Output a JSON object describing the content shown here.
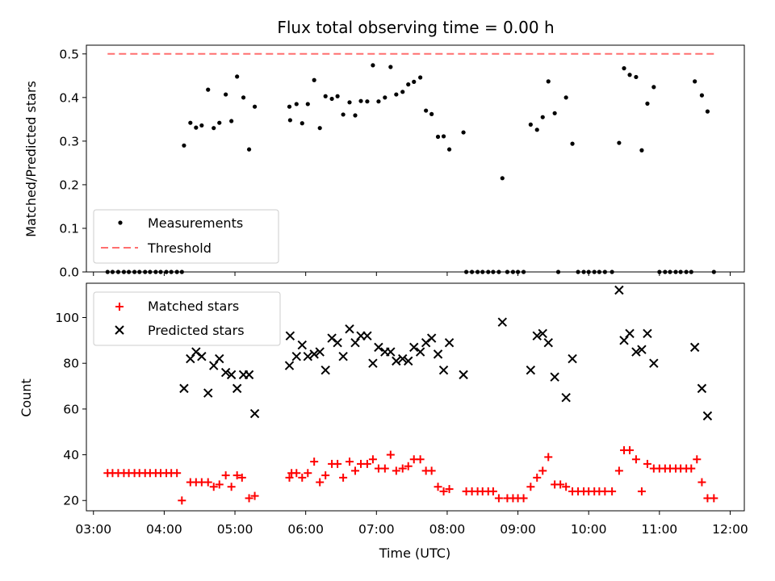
{
  "chart_data": [
    {
      "type": "scatter",
      "title": "Flux total observing time = 0.00 h",
      "ylabel": "Matched/Predicted stars",
      "xlabel": "",
      "xlim": [
        2.9,
        12.2
      ],
      "ylim": [
        0.0,
        0.52
      ],
      "yticks": [
        "0.0",
        "0.1",
        "0.2",
        "0.3",
        "0.4",
        "0.5"
      ],
      "legend_position": "lower-left",
      "series": [
        {
          "name": "Measurements",
          "marker": "dot",
          "color": "#000000",
          "points": [
            [
              3.2,
              0
            ],
            [
              3.27,
              0
            ],
            [
              3.35,
              0
            ],
            [
              3.43,
              0
            ],
            [
              3.5,
              0
            ],
            [
              3.58,
              0
            ],
            [
              3.65,
              0
            ],
            [
              3.73,
              0
            ],
            [
              3.8,
              0
            ],
            [
              3.88,
              0
            ],
            [
              3.95,
              0
            ],
            [
              4.03,
              0
            ],
            [
              4.1,
              0
            ],
            [
              4.18,
              0
            ],
            [
              4.25,
              0
            ],
            [
              4.28,
              0.29
            ],
            [
              4.37,
              0.342
            ],
            [
              4.45,
              0.331
            ],
            [
              4.53,
              0.336
            ],
            [
              4.62,
              0.418
            ],
            [
              4.7,
              0.33
            ],
            [
              4.78,
              0.342
            ],
            [
              4.87,
              0.407
            ],
            [
              4.95,
              0.346
            ],
            [
              5.03,
              0.448
            ],
            [
              5.12,
              0.4
            ],
            [
              5.2,
              0.281
            ],
            [
              5.28,
              0.379
            ],
            [
              5.77,
              0.379
            ],
            [
              5.78,
              0.348
            ],
            [
              5.87,
              0.385
            ],
            [
              5.95,
              0.341
            ],
            [
              6.03,
              0.385
            ],
            [
              6.12,
              0.44
            ],
            [
              6.2,
              0.33
            ],
            [
              6.28,
              0.403
            ],
            [
              6.37,
              0.397
            ],
            [
              6.45,
              0.403
            ],
            [
              6.53,
              0.361
            ],
            [
              6.62,
              0.389
            ],
            [
              6.7,
              0.359
            ],
            [
              6.78,
              0.392
            ],
            [
              6.87,
              0.391
            ],
            [
              6.95,
              0.474
            ],
            [
              7.03,
              0.391
            ],
            [
              7.12,
              0.4
            ],
            [
              7.2,
              0.47
            ],
            [
              7.28,
              0.407
            ],
            [
              7.37,
              0.413
            ],
            [
              7.45,
              0.43
            ],
            [
              7.53,
              0.436
            ],
            [
              7.62,
              0.446
            ],
            [
              7.7,
              0.37
            ],
            [
              7.78,
              0.362
            ],
            [
              7.87,
              0.31
            ],
            [
              7.95,
              0.311
            ],
            [
              8.03,
              0.281
            ],
            [
              8.23,
              0.32
            ],
            [
              8.27,
              0
            ],
            [
              8.35,
              0
            ],
            [
              8.43,
              0
            ],
            [
              8.5,
              0
            ],
            [
              8.58,
              0
            ],
            [
              8.65,
              0
            ],
            [
              8.73,
              0
            ],
            [
              8.78,
              0.215
            ],
            [
              8.85,
              0
            ],
            [
              8.93,
              0
            ],
            [
              9.0,
              0
            ],
            [
              9.08,
              0
            ],
            [
              9.18,
              0.338
            ],
            [
              9.27,
              0.326
            ],
            [
              9.35,
              0.355
            ],
            [
              9.43,
              0.437
            ],
            [
              9.52,
              0.364
            ],
            [
              9.68,
              0.4
            ],
            [
              9.77,
              0.294
            ],
            [
              9.57,
              0
            ],
            [
              9.85,
              0
            ],
            [
              9.93,
              0
            ],
            [
              10.0,
              0
            ],
            [
              10.08,
              0
            ],
            [
              10.15,
              0
            ],
            [
              10.23,
              0
            ],
            [
              10.33,
              0
            ],
            [
              10.43,
              0.296
            ],
            [
              10.5,
              0.467
            ],
            [
              10.58,
              0.452
            ],
            [
              10.67,
              0.447
            ],
            [
              10.75,
              0.279
            ],
            [
              10.83,
              0.386
            ],
            [
              10.92,
              0.424
            ],
            [
              11.0,
              0
            ],
            [
              11.08,
              0
            ],
            [
              11.15,
              0
            ],
            [
              11.23,
              0
            ],
            [
              11.3,
              0
            ],
            [
              11.38,
              0
            ],
            [
              11.45,
              0
            ],
            [
              11.5,
              0.437
            ],
            [
              11.6,
              0.405
            ],
            [
              11.68,
              0.368
            ],
            [
              11.77,
              0
            ]
          ]
        },
        {
          "name": "Threshold",
          "marker": "dashed-line",
          "color": "#ff6f6f",
          "points": [
            [
              3.2,
              0.5
            ],
            [
              11.77,
              0.5
            ]
          ]
        }
      ]
    },
    {
      "type": "scatter",
      "title": "",
      "ylabel": "Count",
      "xlabel": "Time (UTC)",
      "xlim": [
        2.9,
        12.2
      ],
      "ylim": [
        15.5,
        115
      ],
      "yticks": [
        "20",
        "40",
        "60",
        "80",
        "100"
      ],
      "xticks": [
        "03:00",
        "04:00",
        "05:00",
        "06:00",
        "07:00",
        "08:00",
        "09:00",
        "10:00",
        "11:00",
        "12:00"
      ],
      "legend_position": "upper-left",
      "series": [
        {
          "name": "Matched stars",
          "marker": "plus",
          "color": "#ff0000",
          "points": [
            [
              3.2,
              32
            ],
            [
              3.27,
              32
            ],
            [
              3.35,
              32
            ],
            [
              3.43,
              32
            ],
            [
              3.5,
              32
            ],
            [
              3.58,
              32
            ],
            [
              3.65,
              32
            ],
            [
              3.73,
              32
            ],
            [
              3.8,
              32
            ],
            [
              3.88,
              32
            ],
            [
              3.95,
              32
            ],
            [
              4.03,
              32
            ],
            [
              4.1,
              32
            ],
            [
              4.18,
              32
            ],
            [
              4.25,
              20
            ],
            [
              4.37,
              28
            ],
            [
              4.45,
              28
            ],
            [
              4.53,
              28
            ],
            [
              4.62,
              28
            ],
            [
              4.7,
              26
            ],
            [
              4.78,
              27
            ],
            [
              4.87,
              31
            ],
            [
              4.95,
              26
            ],
            [
              5.03,
              31
            ],
            [
              5.1,
              30
            ],
            [
              5.2,
              21
            ],
            [
              5.28,
              22
            ],
            [
              5.77,
              30
            ],
            [
              5.8,
              32
            ],
            [
              5.87,
              32
            ],
            [
              5.95,
              30
            ],
            [
              6.03,
              32
            ],
            [
              6.12,
              37
            ],
            [
              6.2,
              28
            ],
            [
              6.28,
              31
            ],
            [
              6.37,
              36
            ],
            [
              6.45,
              36
            ],
            [
              6.53,
              30
            ],
            [
              6.62,
              37
            ],
            [
              6.7,
              33
            ],
            [
              6.78,
              36
            ],
            [
              6.87,
              36
            ],
            [
              6.95,
              38
            ],
            [
              7.03,
              34
            ],
            [
              7.12,
              34
            ],
            [
              7.2,
              40
            ],
            [
              7.28,
              33
            ],
            [
              7.37,
              34
            ],
            [
              7.45,
              35
            ],
            [
              7.53,
              38
            ],
            [
              7.62,
              38
            ],
            [
              7.7,
              33
            ],
            [
              7.78,
              33
            ],
            [
              7.87,
              26
            ],
            [
              7.95,
              24
            ],
            [
              8.03,
              25
            ],
            [
              8.27,
              24
            ],
            [
              8.35,
              24
            ],
            [
              8.43,
              24
            ],
            [
              8.5,
              24
            ],
            [
              8.58,
              24
            ],
            [
              8.65,
              24
            ],
            [
              8.73,
              21
            ],
            [
              8.85,
              21
            ],
            [
              8.93,
              21
            ],
            [
              9.0,
              21
            ],
            [
              9.08,
              21
            ],
            [
              9.18,
              26
            ],
            [
              9.27,
              30
            ],
            [
              9.35,
              33
            ],
            [
              9.43,
              39
            ],
            [
              9.52,
              27
            ],
            [
              9.6,
              27
            ],
            [
              9.68,
              26
            ],
            [
              9.77,
              24
            ],
            [
              9.85,
              24
            ],
            [
              9.93,
              24
            ],
            [
              10.0,
              24
            ],
            [
              10.08,
              24
            ],
            [
              10.15,
              24
            ],
            [
              10.23,
              24
            ],
            [
              10.33,
              24
            ],
            [
              10.43,
              33
            ],
            [
              10.5,
              42
            ],
            [
              10.58,
              42
            ],
            [
              10.67,
              38
            ],
            [
              10.75,
              24
            ],
            [
              10.83,
              36
            ],
            [
              10.92,
              34
            ],
            [
              11.0,
              34
            ],
            [
              11.08,
              34
            ],
            [
              11.15,
              34
            ],
            [
              11.23,
              34
            ],
            [
              11.3,
              34
            ],
            [
              11.38,
              34
            ],
            [
              11.45,
              34
            ],
            [
              11.53,
              38
            ],
            [
              11.6,
              28
            ],
            [
              11.68,
              21
            ],
            [
              11.77,
              21
            ]
          ]
        },
        {
          "name": "Predicted stars",
          "marker": "x",
          "color": "#000000",
          "points": [
            [
              4.28,
              69
            ],
            [
              4.37,
              82
            ],
            [
              4.45,
              85
            ],
            [
              4.53,
              83
            ],
            [
              4.62,
              67
            ],
            [
              4.7,
              79
            ],
            [
              4.78,
              82
            ],
            [
              4.87,
              76
            ],
            [
              4.95,
              75
            ],
            [
              5.03,
              69
            ],
            [
              5.12,
              75
            ],
            [
              5.2,
              75
            ],
            [
              5.28,
              58
            ],
            [
              5.77,
              79
            ],
            [
              5.78,
              92
            ],
            [
              5.87,
              83
            ],
            [
              5.95,
              88
            ],
            [
              6.03,
              83
            ],
            [
              6.12,
              84
            ],
            [
              6.2,
              85
            ],
            [
              6.28,
              77
            ],
            [
              6.37,
              91
            ],
            [
              6.45,
              89
            ],
            [
              6.53,
              83
            ],
            [
              6.62,
              95
            ],
            [
              6.7,
              89
            ],
            [
              6.78,
              92
            ],
            [
              6.87,
              92
            ],
            [
              6.95,
              80
            ],
            [
              7.03,
              87
            ],
            [
              7.12,
              85
            ],
            [
              7.2,
              85
            ],
            [
              7.28,
              81
            ],
            [
              7.37,
              82
            ],
            [
              7.45,
              81
            ],
            [
              7.53,
              87
            ],
            [
              7.62,
              85
            ],
            [
              7.7,
              89
            ],
            [
              7.78,
              91
            ],
            [
              7.87,
              84
            ],
            [
              7.95,
              77
            ],
            [
              8.03,
              89
            ],
            [
              8.23,
              75
            ],
            [
              8.78,
              98
            ],
            [
              9.18,
              77
            ],
            [
              9.27,
              92
            ],
            [
              9.35,
              93
            ],
            [
              9.43,
              89
            ],
            [
              9.52,
              74
            ],
            [
              9.68,
              65
            ],
            [
              9.77,
              82
            ],
            [
              10.43,
              112
            ],
            [
              10.5,
              90
            ],
            [
              10.58,
              93
            ],
            [
              10.67,
              85
            ],
            [
              10.75,
              86
            ],
            [
              10.83,
              93
            ],
            [
              10.92,
              80
            ],
            [
              11.5,
              87
            ],
            [
              11.6,
              69
            ],
            [
              11.68,
              57
            ]
          ]
        }
      ]
    }
  ]
}
